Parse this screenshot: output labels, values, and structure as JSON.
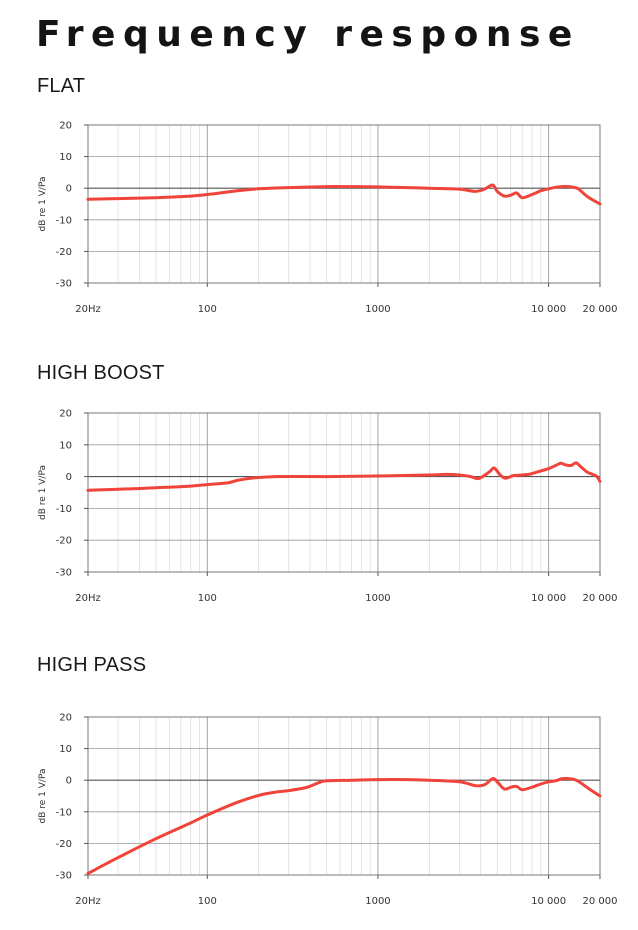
{
  "page": {
    "title": "Frequency response",
    "colors": {
      "curve": "#f0433a",
      "grid_minor": "#d9d9d9",
      "grid_major": "#9a9a9a",
      "zero_line": "#555555",
      "text": "#1a1a1a"
    }
  },
  "chart_data": [
    {
      "type": "line",
      "title": "FLAT",
      "ylabel": "dB re 1 V/Pa",
      "xlabel": "",
      "xscale": "log",
      "xlim": [
        20,
        20000
      ],
      "ylim": [
        -30,
        20
      ],
      "xticks": [
        20,
        100,
        1000,
        10000,
        20000
      ],
      "xtick_labels": [
        "20Hz",
        "100",
        "1000",
        "10 000",
        "20 000"
      ],
      "yticks": [
        20,
        10,
        0,
        -10,
        -20,
        -30
      ],
      "ytick_labels": [
        "20",
        "10",
        "0",
        "-10",
        "-20",
        "-30"
      ],
      "grid": true,
      "series": [
        {
          "x": [
            20,
            30,
            50,
            80,
            100,
            120,
            150,
            200,
            300,
            500,
            700,
            1000,
            1500,
            2000,
            3000,
            3700,
            4200,
            4700,
            5000,
            5500,
            6000,
            6500,
            7000,
            8000,
            9000,
            10000,
            11000,
            12000,
            13000,
            14000,
            15000,
            17000,
            20000
          ],
          "y": [
            -3.5,
            -3.3,
            -3,
            -2.5,
            -2,
            -1.5,
            -0.8,
            -0.2,
            0.2,
            0.5,
            0.5,
            0.4,
            0.2,
            0,
            -0.3,
            -1,
            -0.3,
            1,
            -1,
            -2.5,
            -2.2,
            -1.5,
            -3,
            -2,
            -0.8,
            -0.2,
            0.3,
            0.5,
            0.5,
            0.3,
            -0.3,
            -2.8,
            -5
          ]
        }
      ]
    },
    {
      "type": "line",
      "title": "HIGH BOOST",
      "ylabel": "dB re 1 V/Pa",
      "xlabel": "",
      "xscale": "log",
      "xlim": [
        20,
        20000
      ],
      "ylim": [
        -30,
        20
      ],
      "xticks": [
        20,
        100,
        1000,
        10000,
        20000
      ],
      "xtick_labels": [
        "20Hz",
        "100",
        "1000",
        "10 000",
        "20 000"
      ],
      "yticks": [
        20,
        10,
        0,
        -10,
        -20,
        -30
      ],
      "ytick_labels": [
        "20",
        "10",
        "0",
        "-10",
        "-20",
        "-30"
      ],
      "grid": true,
      "series": [
        {
          "x": [
            20,
            30,
            50,
            80,
            100,
            130,
            150,
            180,
            250,
            500,
            1000,
            2000,
            2500,
            3000,
            3500,
            3900,
            4500,
            4800,
            5200,
            5600,
            6200,
            7000,
            7800,
            9000,
            10000,
            11000,
            11800,
            12500,
            13500,
            14500,
            15500,
            17000,
            19000,
            20000
          ],
          "y": [
            -4.3,
            -4,
            -3.5,
            -3,
            -2.5,
            -2,
            -1.2,
            -0.5,
            0,
            0,
            0.2,
            0.5,
            0.7,
            0.5,
            0,
            -0.6,
            1.5,
            2.7,
            0.5,
            -0.5,
            0.3,
            0.5,
            0.8,
            1.8,
            2.5,
            3.5,
            4.2,
            3.7,
            3.5,
            4.3,
            3,
            1.3,
            0.2,
            -1.5
          ]
        }
      ]
    },
    {
      "type": "line",
      "title": "HIGH PASS",
      "ylabel": "dB re 1 V/Pa",
      "xlabel": "",
      "xscale": "log",
      "xlim": [
        20,
        20000
      ],
      "ylim": [
        -30,
        20
      ],
      "xticks": [
        20,
        100,
        1000,
        10000,
        20000
      ],
      "xtick_labels": [
        "20Hz",
        "100",
        "1000",
        "10 000",
        "20 000"
      ],
      "yticks": [
        20,
        10,
        0,
        -10,
        -20,
        -30
      ],
      "ytick_labels": [
        "20",
        "10",
        "0",
        "-10",
        "-20",
        "-30"
      ],
      "grid": true,
      "series": [
        {
          "x": [
            20,
            30,
            50,
            80,
            100,
            150,
            200,
            250,
            300,
            380,
            450,
            500,
            700,
            1000,
            1500,
            2000,
            3000,
            3700,
            4200,
            4700,
            5000,
            5500,
            6000,
            6500,
            7000,
            8000,
            9000,
            10000,
            11000,
            12000,
            13000,
            14000,
            15000,
            17000,
            20000
          ],
          "y": [
            -29.5,
            -24.5,
            -18.5,
            -13.5,
            -11,
            -7,
            -4.8,
            -3.8,
            -3.3,
            -2.3,
            -0.8,
            -0.2,
            0,
            0.2,
            0.2,
            0,
            -0.5,
            -1.7,
            -1.5,
            0.5,
            -0.5,
            -2.8,
            -2.2,
            -2,
            -3,
            -2.2,
            -1.2,
            -0.5,
            -0.2,
            0.5,
            0.5,
            0.3,
            -0.4,
            -2.5,
            -5
          ]
        }
      ]
    }
  ]
}
